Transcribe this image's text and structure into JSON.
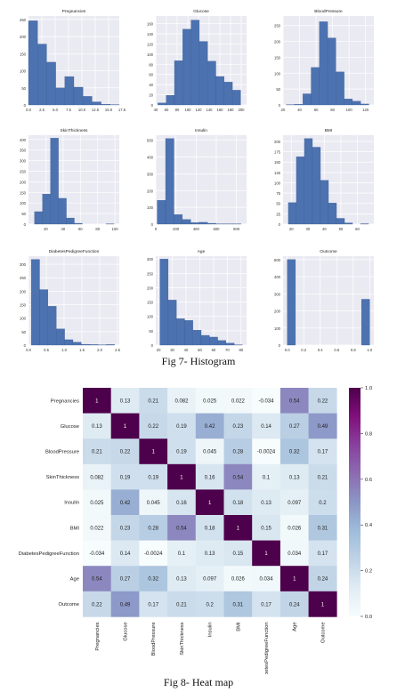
{
  "figure7": {
    "caption": "Fig 7- Histogram",
    "chart_data": [
      {
        "type": "bar",
        "title": "Pregnancies",
        "bin_edges": [
          0,
          1.7,
          3.4,
          5.1,
          6.8,
          8.5,
          10.2,
          11.9,
          13.6,
          15.3,
          17
        ],
        "values": [
          246,
          178,
          125,
          50,
          83,
          52,
          25,
          9,
          2,
          1
        ],
        "xlim": [
          0,
          17
        ],
        "ylim": [
          0,
          260
        ],
        "xticks": [
          0,
          2.5,
          5,
          7.5,
          10,
          12.5,
          15,
          17.5
        ],
        "xtick_labels": [
          "0.0",
          "2.5",
          "5.0",
          "7.5",
          "10.0",
          "12.5",
          "15.0",
          "17.5"
        ],
        "yticks": [
          0,
          50,
          100,
          150,
          200,
          250
        ]
      },
      {
        "type": "bar",
        "title": "Glucose",
        "bin_edges": [
          44,
          59.5,
          75,
          90.5,
          106,
          121.5,
          137,
          152.5,
          168,
          183.5,
          199
        ],
        "values": [
          4,
          19,
          87,
          149,
          167,
          125,
          86,
          56,
          45,
          29
        ],
        "xlim": [
          40,
          210
        ],
        "ylim": [
          0,
          175
        ],
        "xticks": [
          40,
          60,
          80,
          100,
          120,
          140,
          160,
          180,
          200
        ],
        "yticks": [
          0,
          20,
          40,
          60,
          80,
          100,
          120,
          140,
          160
        ]
      },
      {
        "type": "bar",
        "title": "BloodPressure",
        "bin_edges": [
          24,
          34,
          44,
          54,
          64,
          74,
          84,
          94,
          104,
          114,
          124
        ],
        "values": [
          1,
          2,
          35,
          118,
          262,
          211,
          104,
          19,
          12,
          3
        ],
        "xlim": [
          20,
          130
        ],
        "ylim": [
          0,
          280
        ],
        "xticks": [
          20,
          40,
          60,
          80,
          100,
          120
        ],
        "yticks": [
          0,
          50,
          100,
          150,
          200,
          250
        ]
      },
      {
        "type": "bar",
        "title": "SkinThickness",
        "bin_edges": [
          7,
          16.2,
          25.4,
          34.6,
          43.8,
          53,
          62.2,
          71.4,
          80.6,
          89.8,
          99
        ],
        "values": [
          59,
          142,
          406,
          122,
          29,
          4,
          0,
          0,
          0,
          1
        ],
        "xlim": [
          0,
          105
        ],
        "ylim": [
          0,
          420
        ],
        "xticks": [
          20,
          40,
          60,
          80,
          100
        ],
        "yticks": [
          0,
          50,
          100,
          150,
          200,
          250,
          300,
          350,
          400
        ]
      },
      {
        "type": "bar",
        "title": "Insulin",
        "bin_edges": [
          14,
          97.2,
          180.4,
          263.6,
          346.8,
          430,
          513.2,
          596.4,
          679.6,
          762.8,
          846
        ],
        "values": [
          142,
          510,
          57,
          28,
          9,
          11,
          5,
          1,
          1,
          1
        ],
        "xlim": [
          0,
          900
        ],
        "ylim": [
          0,
          530
        ],
        "xticks": [
          0,
          200,
          400,
          600,
          800
        ],
        "yticks": [
          0,
          100,
          200,
          300,
          400,
          500
        ]
      },
      {
        "type": "bar",
        "title": "BMI",
        "bin_edges": [
          18.2,
          23.06,
          27.92,
          32.78,
          37.64,
          42.5,
          47.36,
          52.22,
          57.08,
          61.94,
          66.8
        ],
        "values": [
          52,
          163,
          207,
          186,
          106,
          51,
          14,
          3,
          0,
          1
        ],
        "xlim": [
          15,
          70
        ],
        "ylim": [
          0,
          215
        ],
        "xticks": [
          20,
          30,
          40,
          50,
          60
        ],
        "yticks": [
          0,
          25,
          50,
          75,
          100,
          125,
          150,
          175,
          200
        ]
      },
      {
        "type": "bar",
        "title": "DiabetesPedigreeFunction",
        "bin_edges": [
          0.078,
          0.3122,
          0.5464,
          0.7806,
          1.0148,
          1.249,
          1.4832,
          1.7174,
          1.9516,
          2.1858,
          2.42
        ],
        "values": [
          318,
          206,
          144,
          60,
          20,
          11,
          3,
          2,
          1,
          2
        ],
        "xlim": [
          0,
          2.55
        ],
        "ylim": [
          0,
          330
        ],
        "xticks": [
          0,
          0.5,
          1,
          1.5,
          2,
          2.5
        ],
        "xtick_labels": [
          "0.0",
          "0.5",
          "1.0",
          "1.5",
          "2.0",
          "2.5"
        ],
        "yticks": [
          0,
          50,
          100,
          150,
          200,
          250,
          300
        ]
      },
      {
        "type": "bar",
        "title": "Age",
        "bin_edges": [
          21,
          27,
          33,
          39,
          45,
          51,
          57,
          63,
          69,
          75,
          81
        ],
        "values": [
          300,
          157,
          92,
          86,
          52,
          34,
          28,
          16,
          7,
          1
        ],
        "xlim": [
          18,
          84
        ],
        "ylim": [
          0,
          310
        ],
        "xticks": [
          20,
          30,
          40,
          50,
          60,
          70,
          80
        ],
        "yticks": [
          0,
          50,
          100,
          150,
          200,
          250,
          300
        ]
      },
      {
        "type": "bar",
        "title": "Outcome",
        "bin_edges": [
          0,
          0.1,
          0.2,
          0.3,
          0.4,
          0.5,
          0.6,
          0.7,
          0.8,
          0.9,
          1.0
        ],
        "values": [
          500,
          0,
          0,
          0,
          0,
          0,
          0,
          0,
          0,
          268
        ],
        "xlim": [
          -0.05,
          1.05
        ],
        "ylim": [
          0,
          520
        ],
        "xticks": [
          0,
          0.2,
          0.4,
          0.6,
          0.8,
          1
        ],
        "xtick_labels": [
          "0.0",
          "0.2",
          "0.4",
          "0.6",
          "0.8",
          "1.0"
        ],
        "yticks": [
          0,
          100,
          200,
          300,
          400,
          500
        ]
      }
    ]
  },
  "figure8": {
    "caption": "Fig 8- Heat map",
    "chart_data": {
      "type": "heatmap",
      "labels": [
        "Pregnancies",
        "Glucose",
        "BloodPressure",
        "SkinThickness",
        "Insulin",
        "BMI",
        "DiabetesPedigreeFunction",
        "Age",
        "Outcome"
      ],
      "matrix": [
        [
          1,
          0.13,
          0.21,
          0.082,
          0.025,
          0.022,
          -0.034,
          0.54,
          0.22
        ],
        [
          0.13,
          1,
          0.22,
          0.19,
          0.42,
          0.23,
          0.14,
          0.27,
          0.49
        ],
        [
          0.21,
          0.22,
          1,
          0.19,
          0.045,
          0.28,
          -0.0024,
          0.32,
          0.17
        ],
        [
          0.082,
          0.19,
          0.19,
          1,
          0.16,
          0.54,
          0.1,
          0.13,
          0.21
        ],
        [
          0.025,
          0.42,
          0.045,
          0.16,
          1,
          0.18,
          0.13,
          0.097,
          0.2
        ],
        [
          0.022,
          0.23,
          0.28,
          0.54,
          0.18,
          1,
          0.15,
          0.026,
          0.31
        ],
        [
          -0.034,
          0.14,
          -0.0024,
          0.1,
          0.13,
          0.15,
          1,
          0.034,
          0.17
        ],
        [
          0.54,
          0.27,
          0.32,
          0.13,
          0.097,
          0.026,
          0.034,
          1,
          0.24
        ],
        [
          0.22,
          0.49,
          0.17,
          0.21,
          0.2,
          0.31,
          0.17,
          0.24,
          1
        ]
      ],
      "cell_labels": [
        [
          "1",
          "0.13",
          "0.21",
          "0.082",
          "0.025",
          "0.022",
          "-0.034",
          "0.54",
          "0.22"
        ],
        [
          "0.13",
          "1",
          "0.22",
          "0.19",
          "0.42",
          "0.23",
          "0.14",
          "0.27",
          "0.49"
        ],
        [
          "0.21",
          "0.22",
          "1",
          "0.19",
          "0.045",
          "0.28",
          "-0.0024",
          "0.32",
          "0.17"
        ],
        [
          "0.082",
          "0.19",
          "0.19",
          "1",
          "0.16",
          "0.54",
          "0.1",
          "0.13",
          "0.21"
        ],
        [
          "0.025",
          "0.42",
          "0.045",
          "0.16",
          "1",
          "0.18",
          "0.13",
          "0.097",
          "0.2"
        ],
        [
          "0.022",
          "0.23",
          "0.28",
          "0.54",
          "0.18",
          "1",
          "0.15",
          "0.026",
          "0.31"
        ],
        [
          "-0.034",
          "0.14",
          "-0.0024",
          "0.1",
          "0.13",
          "0.15",
          "1",
          "0.034",
          "0.17"
        ],
        [
          "0.54",
          "0.27",
          "0.32",
          "0.13",
          "0.097",
          "0.026",
          "0.034",
          "1",
          "0.24"
        ],
        [
          "0.22",
          "0.49",
          "0.17",
          "0.21",
          "0.2",
          "0.31",
          "0.17",
          "0.24",
          "1"
        ]
      ],
      "colorbar_ticks": [
        0,
        0.2,
        0.4,
        0.6,
        0.8,
        1
      ],
      "colorbar_tick_labels": [
        "0.0",
        "0.2",
        "0.4",
        "0.6",
        "0.8",
        "1.0"
      ],
      "vmin": 0,
      "vmax": 1,
      "colormap": [
        "#f7fcfd",
        "#e0ecf4",
        "#bfd3e6",
        "#9ebcda",
        "#8c96c6",
        "#8c6bb1",
        "#88419d",
        "#810f7c",
        "#4d004b"
      ]
    }
  },
  "colors": {
    "bar": "#4c72b0",
    "panel_bg": "#eaeaf2",
    "grid": "#ffffff",
    "text": "#333333"
  }
}
